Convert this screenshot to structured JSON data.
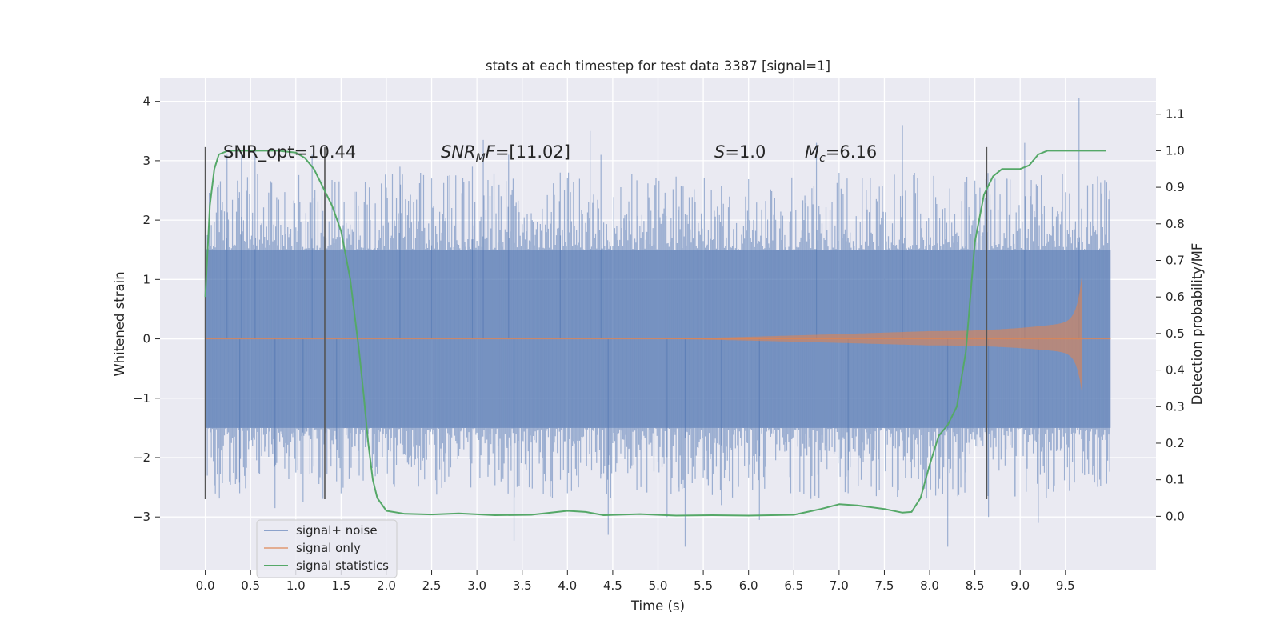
{
  "chart_data": {
    "type": "line",
    "title": "stats at each timestep for test data 3387 [signal=1]",
    "xlabel": "Time (s)",
    "ylabel": "Whitened strain",
    "ylabel_right": "Detection probability/MF",
    "xlim": [
      -0.5,
      10.5
    ],
    "ylim": [
      -3.9,
      4.4
    ],
    "ylim_right": [
      -0.148,
      1.2
    ],
    "x_ticks": [
      "0.0",
      "0.5",
      "1.0",
      "1.5",
      "2.0",
      "2.5",
      "3.0",
      "3.5",
      "4.0",
      "4.5",
      "5.0",
      "5.5",
      "6.0",
      "6.5",
      "7.0",
      "7.5",
      "8.0",
      "8.5",
      "9.0",
      "9.5"
    ],
    "y_ticks": [
      "−3",
      "−2",
      "−1",
      "0",
      "1",
      "2",
      "3",
      "4"
    ],
    "y_right_ticks": [
      "0.0",
      "0.1",
      "0.2",
      "0.3",
      "0.4",
      "0.5",
      "0.6",
      "0.7",
      "0.8",
      "0.9",
      "1.0",
      "1.1"
    ],
    "grid": true,
    "legend_position": "bottom-left",
    "annotations": {
      "snr_opt": "SNR_opt=10.44",
      "snr_mf_base": "SNR",
      "snr_mf_sub": "MF",
      "snr_mf_rest": "=[11.02]",
      "s_var": "S",
      "s_rest": "=1.0",
      "mc_var": "M",
      "mc_sub": "c",
      "mc_rest": "=6.16"
    },
    "vertical_lines_x": [
      0.0,
      1.32,
      8.63
    ],
    "series": [
      {
        "name": "signal+ noise",
        "color": "#4c72b0",
        "description_values": {
          "x_range": [
            0.0,
            10.0
          ],
          "band_low": -1.5,
          "band_high": 1.5,
          "peak_max": 4.05,
          "peak_min": -3.5
        },
        "spikes": [
          {
            "x": 0.24,
            "y": 3.1
          },
          {
            "x": 0.4,
            "y": 3.1
          },
          {
            "x": 0.55,
            "y": 3.2
          },
          {
            "x": 1.18,
            "y": 3.1
          },
          {
            "x": 2.15,
            "y": 2.9
          },
          {
            "x": 2.5,
            "y": 2.7
          },
          {
            "x": 2.95,
            "y": 2.9
          },
          {
            "x": 3.07,
            "y": 3.35
          },
          {
            "x": 3.35,
            "y": 3.1
          },
          {
            "x": 3.92,
            "y": 2.8
          },
          {
            "x": 4.25,
            "y": 3.5
          },
          {
            "x": 4.37,
            "y": 3.1
          },
          {
            "x": 6.75,
            "y": 3.3
          },
          {
            "x": 7.7,
            "y": 3.6
          },
          {
            "x": 9.05,
            "y": 3.3
          },
          {
            "x": 9.65,
            "y": 4.05
          },
          {
            "x": 0.38,
            "y": -2.6
          },
          {
            "x": 0.77,
            "y": -2.85
          },
          {
            "x": 1.08,
            "y": -2.75
          },
          {
            "x": 3.41,
            "y": -3.4
          },
          {
            "x": 4.45,
            "y": -3.3
          },
          {
            "x": 5.1,
            "y": -3.0
          },
          {
            "x": 5.3,
            "y": -3.5
          },
          {
            "x": 6.12,
            "y": -3.05
          },
          {
            "x": 8.2,
            "y": -3.5
          },
          {
            "x": 8.65,
            "y": -3.0
          },
          {
            "x": 9.2,
            "y": -3.1
          },
          {
            "x": 1.45,
            "y": -2.4
          },
          {
            "x": 5.7,
            "y": -2.8
          },
          {
            "x": 7.1,
            "y": -2.6
          }
        ]
      },
      {
        "name": "signal only",
        "color": "#dd8452",
        "chirp": {
          "start_x": 5.0,
          "end_x": 9.68,
          "amp_start": 0.0,
          "amp_end": 1.05,
          "amp_at_8": 0.13
        }
      },
      {
        "name": "signal statistics",
        "color": "#55a868",
        "axis": "right",
        "x": [
          0.0,
          0.05,
          0.1,
          0.15,
          0.25,
          0.5,
          0.8,
          1.0,
          1.1,
          1.2,
          1.3,
          1.4,
          1.5,
          1.6,
          1.7,
          1.75,
          1.8,
          1.85,
          1.9,
          2.0,
          2.2,
          2.5,
          2.8,
          3.2,
          3.6,
          4.0,
          4.2,
          4.4,
          4.8,
          5.2,
          5.6,
          6.0,
          6.5,
          6.8,
          7.0,
          7.2,
          7.5,
          7.7,
          7.8,
          7.9,
          8.0,
          8.1,
          8.2,
          8.3,
          8.4,
          8.5,
          8.6,
          8.7,
          8.8,
          8.9,
          9.0,
          9.1,
          9.2,
          9.3,
          9.5,
          9.7,
          9.95
        ],
        "y": [
          0.6,
          0.85,
          0.95,
          0.99,
          1.0,
          1.0,
          1.0,
          0.995,
          0.98,
          0.95,
          0.9,
          0.85,
          0.78,
          0.65,
          0.45,
          0.33,
          0.2,
          0.1,
          0.05,
          0.015,
          0.007,
          0.005,
          0.008,
          0.003,
          0.004,
          0.015,
          0.012,
          0.003,
          0.006,
          0.002,
          0.003,
          0.002,
          0.004,
          0.02,
          0.033,
          0.03,
          0.02,
          0.01,
          0.012,
          0.05,
          0.14,
          0.22,
          0.25,
          0.3,
          0.45,
          0.75,
          0.88,
          0.93,
          0.95,
          0.95,
          0.95,
          0.96,
          0.99,
          1.0,
          1.0,
          1.0,
          1.0
        ]
      }
    ]
  }
}
